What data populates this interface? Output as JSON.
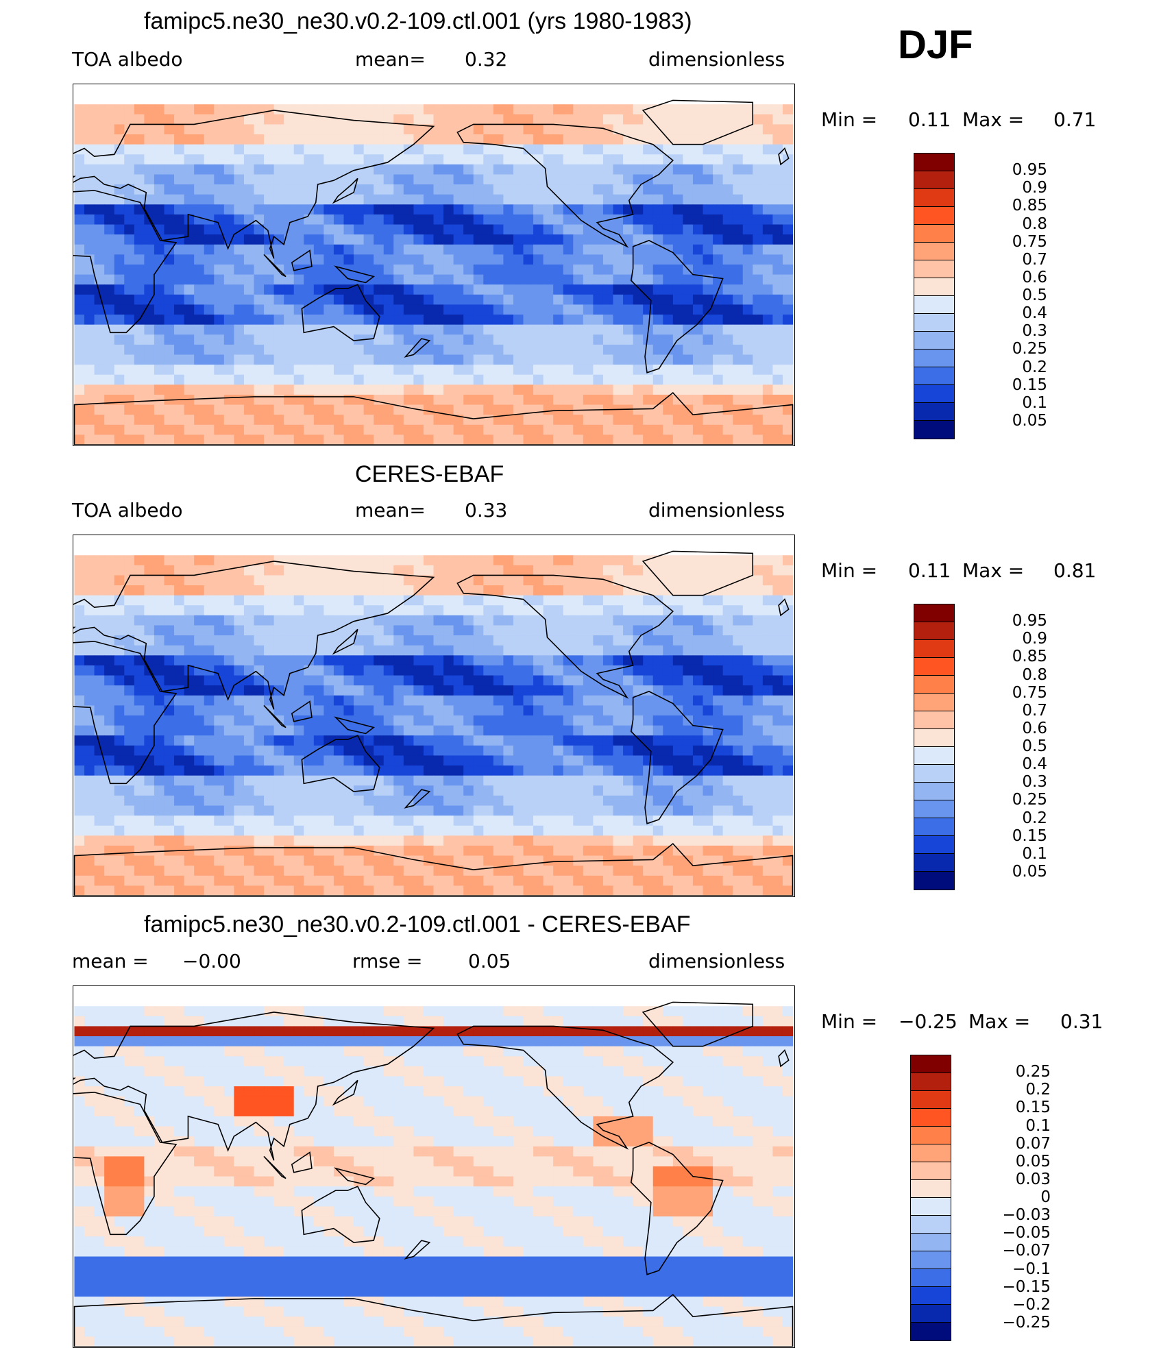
{
  "season": "DJF",
  "panels": [
    {
      "title": "famipc5.ne30_ne30.v0.2-109.ctl.001 (yrs 1980-1983)",
      "left_label": "TOA albedo",
      "middle_label": "mean=",
      "middle_value": "0.32",
      "right_label": "dimensionless",
      "min_label": "Min =",
      "min_value": "0.11",
      "max_label": "Max =",
      "max_value": "0.71",
      "colorbar_levels": [
        "0.95",
        "0.9",
        "0.85",
        "0.8",
        "0.75",
        "0.7",
        "0.6",
        "0.5",
        "0.4",
        "0.3",
        "0.25",
        "0.2",
        "0.15",
        "0.1",
        "0.05"
      ],
      "colorbar_colors": [
        "#800000",
        "#b3200d",
        "#e03a14",
        "#ff5522",
        "#ff8048",
        "#ffa479",
        "#ffc3a8",
        "#fbe3d6",
        "#dbe9fb",
        "#b9d1f7",
        "#93b5f2",
        "#6a95ee",
        "#3c6ee8",
        "#1645d8",
        "#0828ad",
        "#000c7c"
      ],
      "field": "model"
    },
    {
      "title": "CERES-EBAF",
      "left_label": "TOA albedo",
      "middle_label": "mean=",
      "middle_value": "0.33",
      "right_label": "dimensionless",
      "min_label": "Min =",
      "min_value": "0.11",
      "max_label": "Max =",
      "max_value": "0.81",
      "colorbar_levels": [
        "0.95",
        "0.9",
        "0.85",
        "0.8",
        "0.75",
        "0.7",
        "0.6",
        "0.5",
        "0.4",
        "0.3",
        "0.25",
        "0.2",
        "0.15",
        "0.1",
        "0.05"
      ],
      "colorbar_colors": [
        "#800000",
        "#b3200d",
        "#e03a14",
        "#ff5522",
        "#ff8048",
        "#ffa479",
        "#ffc3a8",
        "#fbe3d6",
        "#dbe9fb",
        "#b9d1f7",
        "#93b5f2",
        "#6a95ee",
        "#3c6ee8",
        "#1645d8",
        "#0828ad",
        "#000c7c"
      ],
      "field": "obs"
    },
    {
      "title": "famipc5.ne30_ne30.v0.2-109.ctl.001 - CERES-EBAF",
      "left_label": "mean =",
      "left_value": "−0.00",
      "middle_label": "rmse =",
      "middle_value": "0.05",
      "right_label": "dimensionless",
      "min_label": "Min =",
      "min_value": "−0.25",
      "max_label": "Max =",
      "max_value": "0.31",
      "colorbar_levels": [
        "0.25",
        "0.2",
        "0.15",
        "0.1",
        "0.07",
        "0.05",
        "0.03",
        "0",
        "−0.03",
        "−0.05",
        "−0.07",
        "−0.1",
        "−0.15",
        "−0.2",
        "−0.25"
      ],
      "colorbar_colors": [
        "#800000",
        "#b3200d",
        "#e03a14",
        "#ff5522",
        "#ff8048",
        "#ffa479",
        "#ffc3a8",
        "#fbe3d6",
        "#dbe9fb",
        "#b9d1f7",
        "#93b5f2",
        "#6a95ee",
        "#3c6ee8",
        "#1645d8",
        "#0828ad",
        "#000c7c"
      ],
      "field": "diff"
    }
  ]
}
